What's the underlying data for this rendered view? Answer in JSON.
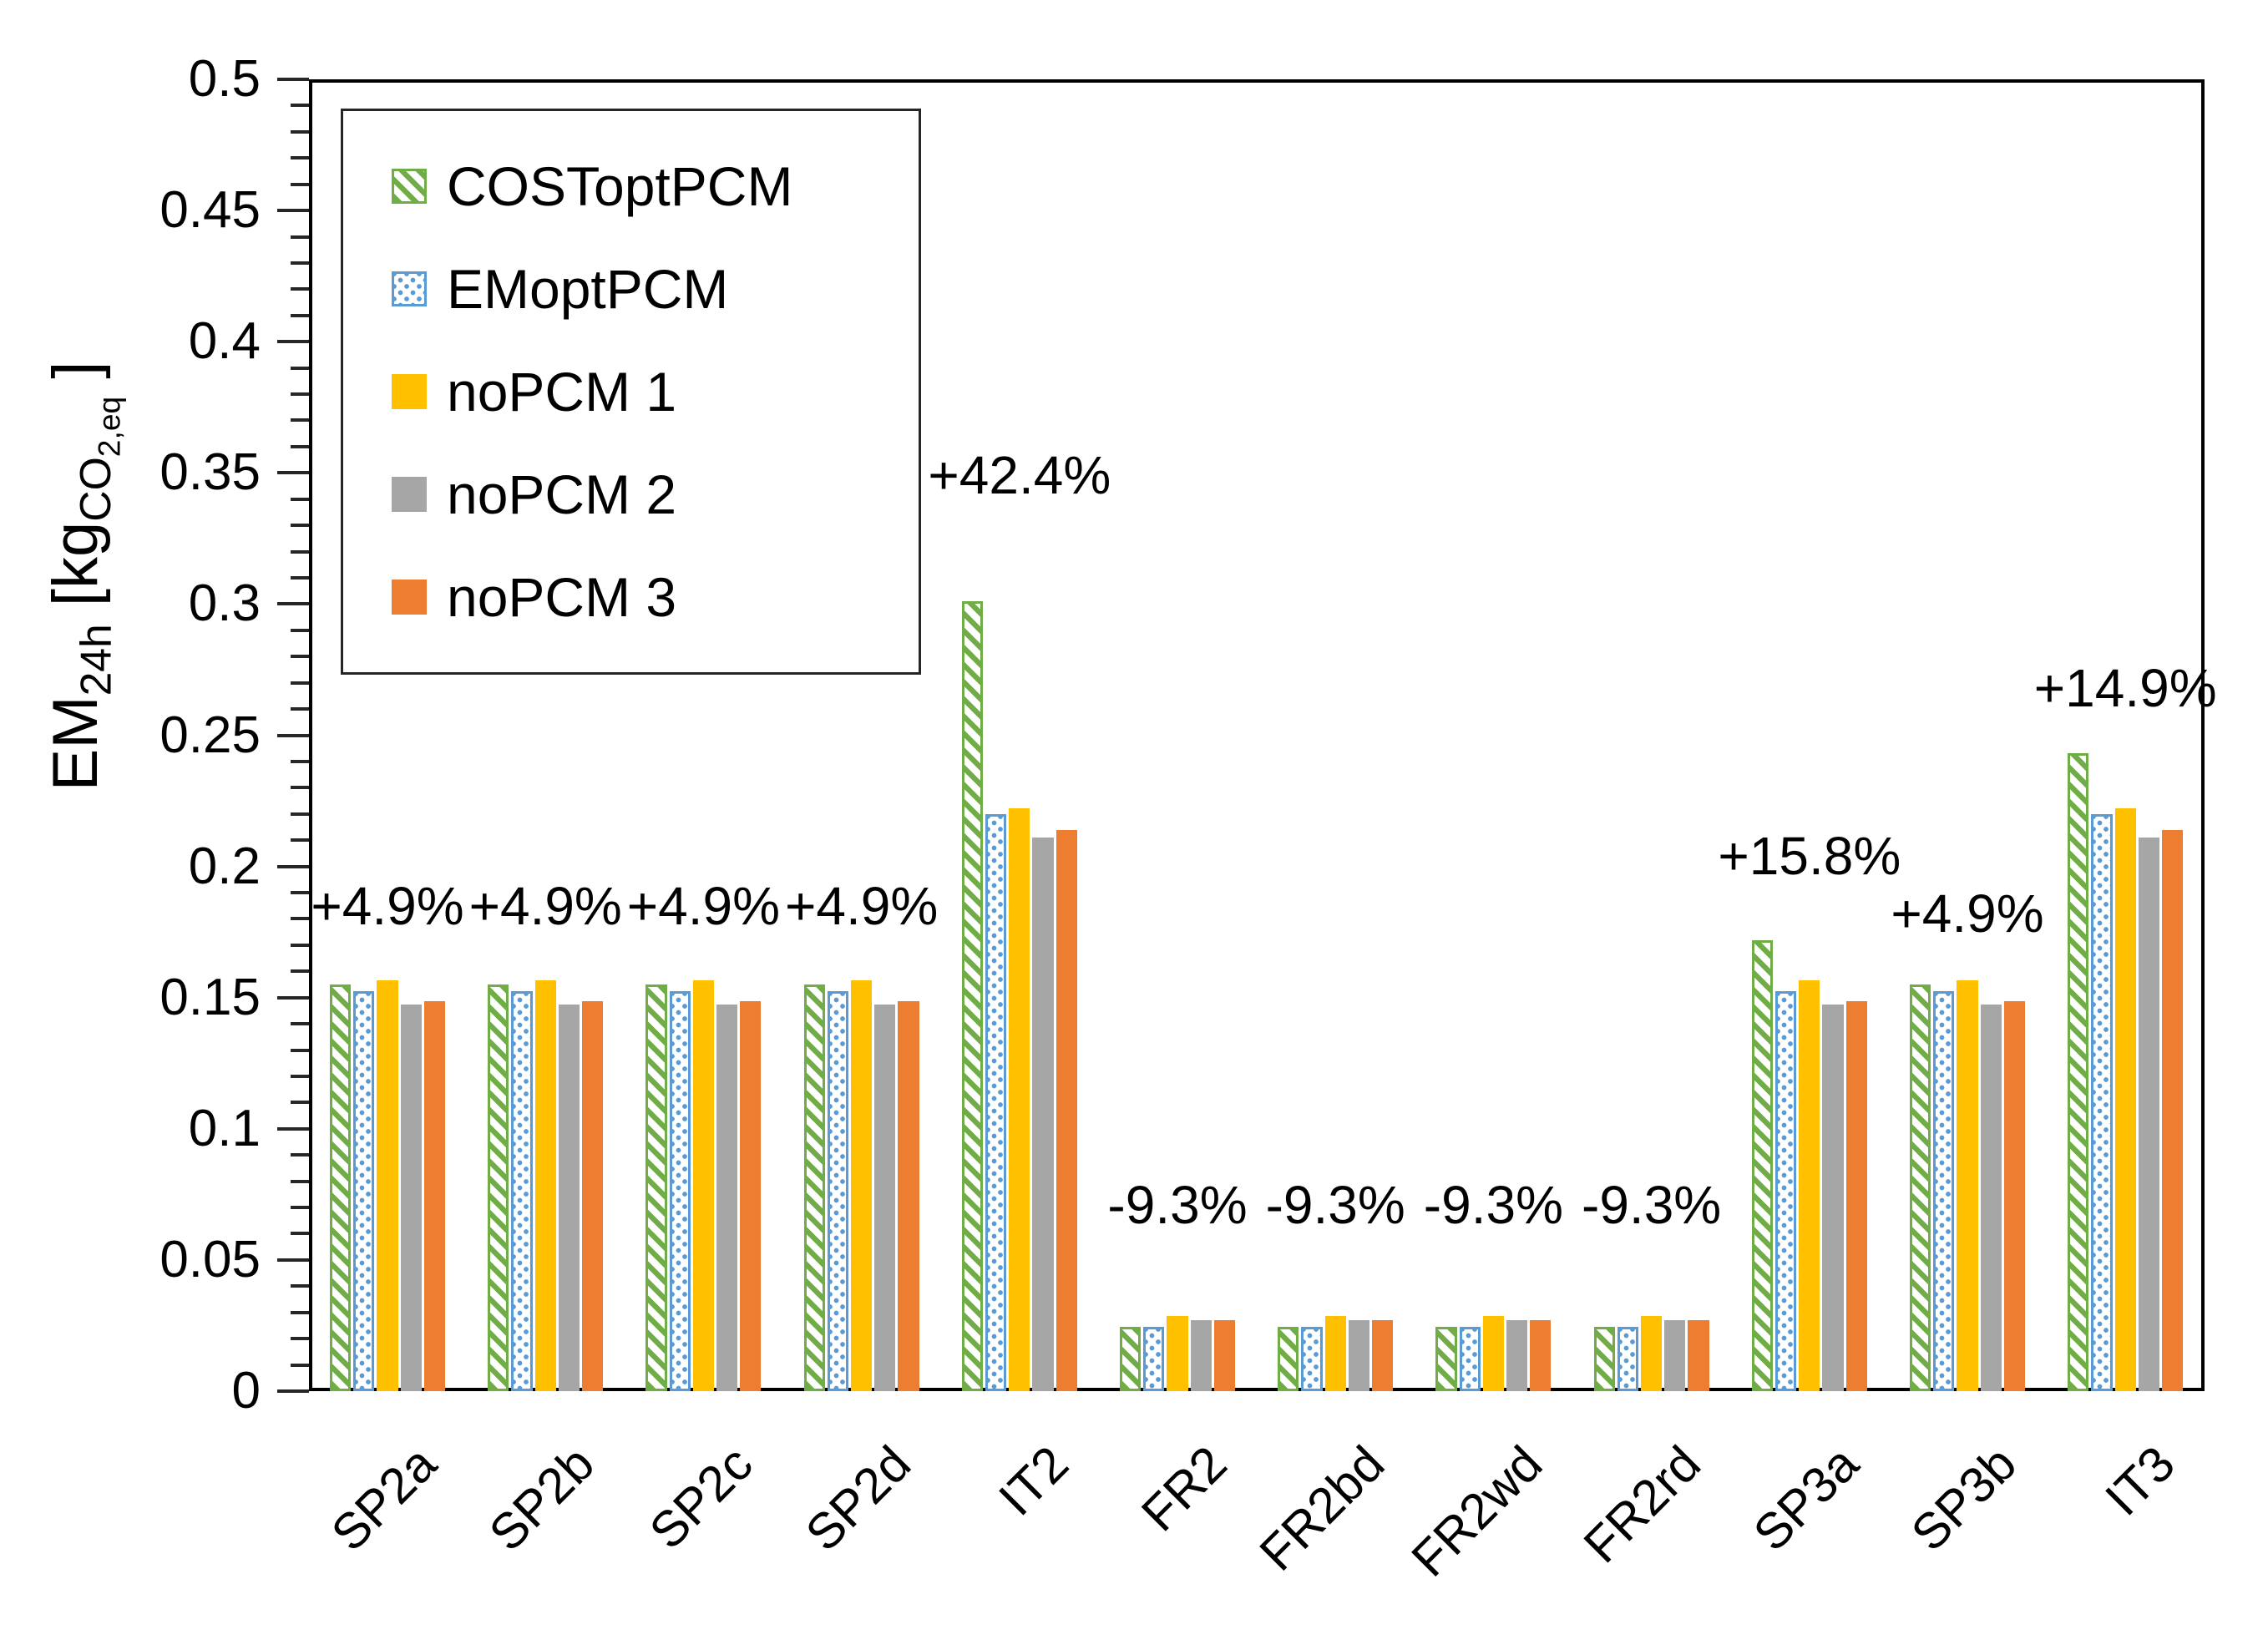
{
  "chart_data": {
    "type": "bar",
    "title": "",
    "ylabel": {
      "main1": "EM",
      "sub1": "24h",
      "main2": " [kg",
      "sub2": "CO",
      "subsub2": "2,eq",
      "main3": " ]"
    },
    "categories": [
      "SP2a",
      "SP2b",
      "SP2c",
      "SP2d",
      "IT2",
      "FR2",
      "FR2bd",
      "FR2wd",
      "FR2rd",
      "SP3a",
      "SP3b",
      "IT3"
    ],
    "series": [
      {
        "name": "COSToptPCM",
        "pattern": "hatch",
        "color": "#70AD47",
        "values": [
          0.155,
          0.155,
          0.155,
          0.155,
          0.301,
          0.0245,
          0.0245,
          0.0245,
          0.0245,
          0.172,
          0.155,
          0.243
        ]
      },
      {
        "name": "EMoptPCM",
        "pattern": "dots",
        "color": "#5B9BD5",
        "values": [
          0.1525,
          0.1525,
          0.1525,
          0.1525,
          0.22,
          0.0245,
          0.0245,
          0.0245,
          0.0245,
          0.1525,
          0.1525,
          0.22
        ]
      },
      {
        "name": "noPCM 1",
        "pattern": "solid",
        "color": "#FFC000",
        "values": [
          0.1565,
          0.1565,
          0.1565,
          0.1565,
          0.222,
          0.0285,
          0.0285,
          0.0285,
          0.0285,
          0.1565,
          0.1565,
          0.222
        ]
      },
      {
        "name": "noPCM 2",
        "pattern": "solid",
        "color": "#A6A6A6",
        "values": [
          0.1475,
          0.1475,
          0.1475,
          0.1475,
          0.211,
          0.027,
          0.027,
          0.027,
          0.027,
          0.1475,
          0.1475,
          0.211
        ]
      },
      {
        "name": "noPCM 3",
        "pattern": "solid",
        "color": "#ED7D31",
        "values": [
          0.1485,
          0.1485,
          0.1485,
          0.1485,
          0.214,
          0.027,
          0.027,
          0.027,
          0.027,
          0.1485,
          0.1485,
          0.214
        ]
      }
    ],
    "annotations": [
      {
        "category": "SP2a",
        "text": "+4.9%",
        "y": 0.185
      },
      {
        "category": "SP2b",
        "text": "+4.9%",
        "y": 0.185
      },
      {
        "category": "SP2c",
        "text": "+4.9%",
        "y": 0.185
      },
      {
        "category": "SP2d",
        "text": "+4.9%",
        "y": 0.185
      },
      {
        "category": "IT2",
        "text": "+42.4%",
        "y": 0.349
      },
      {
        "category": "FR2",
        "text": "-9.3%",
        "y": 0.071
      },
      {
        "category": "FR2bd",
        "text": "-9.3%",
        "y": 0.071
      },
      {
        "category": "FR2wd",
        "text": "-9.3%",
        "y": 0.071
      },
      {
        "category": "FR2rd",
        "text": "-9.3%",
        "y": 0.071
      },
      {
        "category": "SP3a",
        "text": "+15.8%",
        "y": 0.204
      },
      {
        "category": "SP3b",
        "text": "+4.9%",
        "y": 0.182
      },
      {
        "category": "IT3",
        "text": "+14.9%",
        "y": 0.268
      }
    ],
    "ylim": [
      0,
      0.5
    ],
    "ytick_labels": [
      "0",
      "0.05",
      "0.1",
      "0.15",
      "0.2",
      "0.25",
      "0.3",
      "0.35",
      "0.4",
      "0.45",
      "0.5"
    ],
    "ytick_step": 0.05,
    "minor_tick_step": 0.01,
    "grid": false,
    "legend_position": "top-left",
    "colors": {
      "axis": "#000000",
      "ticks": "#262626",
      "background": "#ffffff"
    }
  }
}
